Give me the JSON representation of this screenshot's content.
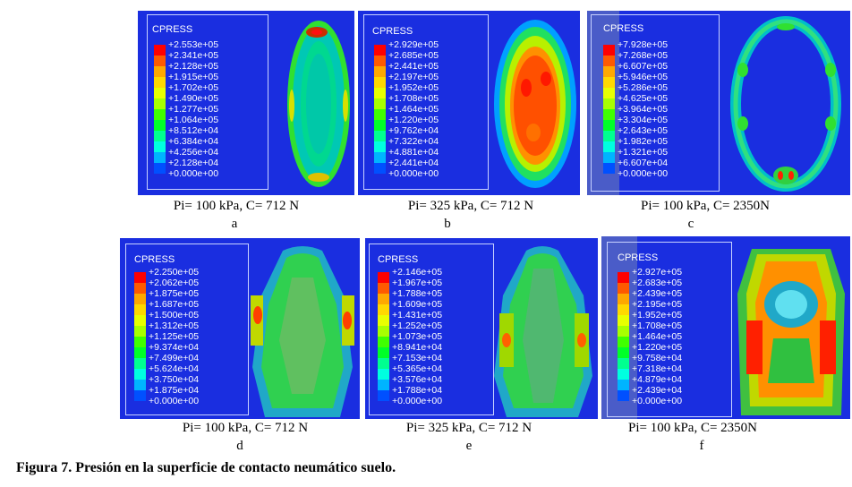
{
  "legend_colors": [
    "#ff0000",
    "#ff5a00",
    "#ffa800",
    "#ffd800",
    "#e8ff00",
    "#a8ff00",
    "#40ff00",
    "#00ff28",
    "#00ff90",
    "#00ffe0",
    "#00b4ff",
    "#0050ff",
    "#1a1aff"
  ],
  "panels": [
    {
      "title": "CPRESS",
      "values": [
        "+2.553e+05",
        "+2.341e+05",
        "+2.128e+05",
        "+1.915e+05",
        "+1.702e+05",
        "+1.490e+05",
        "+1.277e+05",
        "+1.064e+05",
        "+8.512e+04",
        "+6.384e+04",
        "+4.256e+04",
        "+2.128e+04",
        "+0.000e+00"
      ],
      "caption": "Pi= 100 kPa, C= 712 N",
      "letter": "a"
    },
    {
      "title": "CPRESS",
      "values": [
        "+2.929e+05",
        "+2.685e+05",
        "+2.441e+05",
        "+2.197e+05",
        "+1.952e+05",
        "+1.708e+05",
        "+1.464e+05",
        "+1.220e+05",
        "+9.762e+04",
        "+7.322e+04",
        "+4.881e+04",
        "+2.441e+04",
        "+0.000e+00"
      ],
      "caption": "Pi= 325 kPa, C= 712 N",
      "letter": "b"
    },
    {
      "title": "CPRESS",
      "values": [
        "+7.928e+05",
        "+7.268e+05",
        "+6.607e+05",
        "+5.946e+05",
        "+5.286e+05",
        "+4.625e+05",
        "+3.964e+05",
        "+3.304e+05",
        "+2.643e+05",
        "+1.982e+05",
        "+1.321e+05",
        "+6.607e+04",
        "+0.000e+00"
      ],
      "caption": "Pi= 100 kPa, C= 2350N",
      "letter": "c"
    },
    {
      "title": "CPRESS",
      "values": [
        "+2.250e+05",
        "+2.062e+05",
        "+1.875e+05",
        "+1.687e+05",
        "+1.500e+05",
        "+1.312e+05",
        "+1.125e+05",
        "+9.374e+04",
        "+7.499e+04",
        "+5.624e+04",
        "+3.750e+04",
        "+1.875e+04",
        "+0.000e+00"
      ],
      "caption": "Pi= 100 kPa, C= 712 N",
      "letter": "d"
    },
    {
      "title": "CPRESS",
      "values": [
        "+2.146e+05",
        "+1.967e+05",
        "+1.788e+05",
        "+1.609e+05",
        "+1.431e+05",
        "+1.252e+05",
        "+1.073e+05",
        "+8.941e+04",
        "+7.153e+04",
        "+5.365e+04",
        "+3.576e+04",
        "+1.788e+04",
        "+0.000e+00"
      ],
      "caption": "Pi= 325 kPa, C= 712 N",
      "letter": "e"
    },
    {
      "title": "CPRESS",
      "values": [
        "+2.927e+05",
        "+2.683e+05",
        "+2.439e+05",
        "+2.195e+05",
        "+1.952e+05",
        "+1.708e+05",
        "+1.464e+05",
        "+1.220e+05",
        "+9.758e+04",
        "+7.318e+04",
        "+4.879e+04",
        "+2.439e+04",
        "+0.000e+00"
      ],
      "caption": "Pi= 100 kPa, C= 2350N",
      "letter": "f"
    }
  ],
  "figure_caption": "Figura 7. Presión en la superficie de contacto neumático suelo."
}
